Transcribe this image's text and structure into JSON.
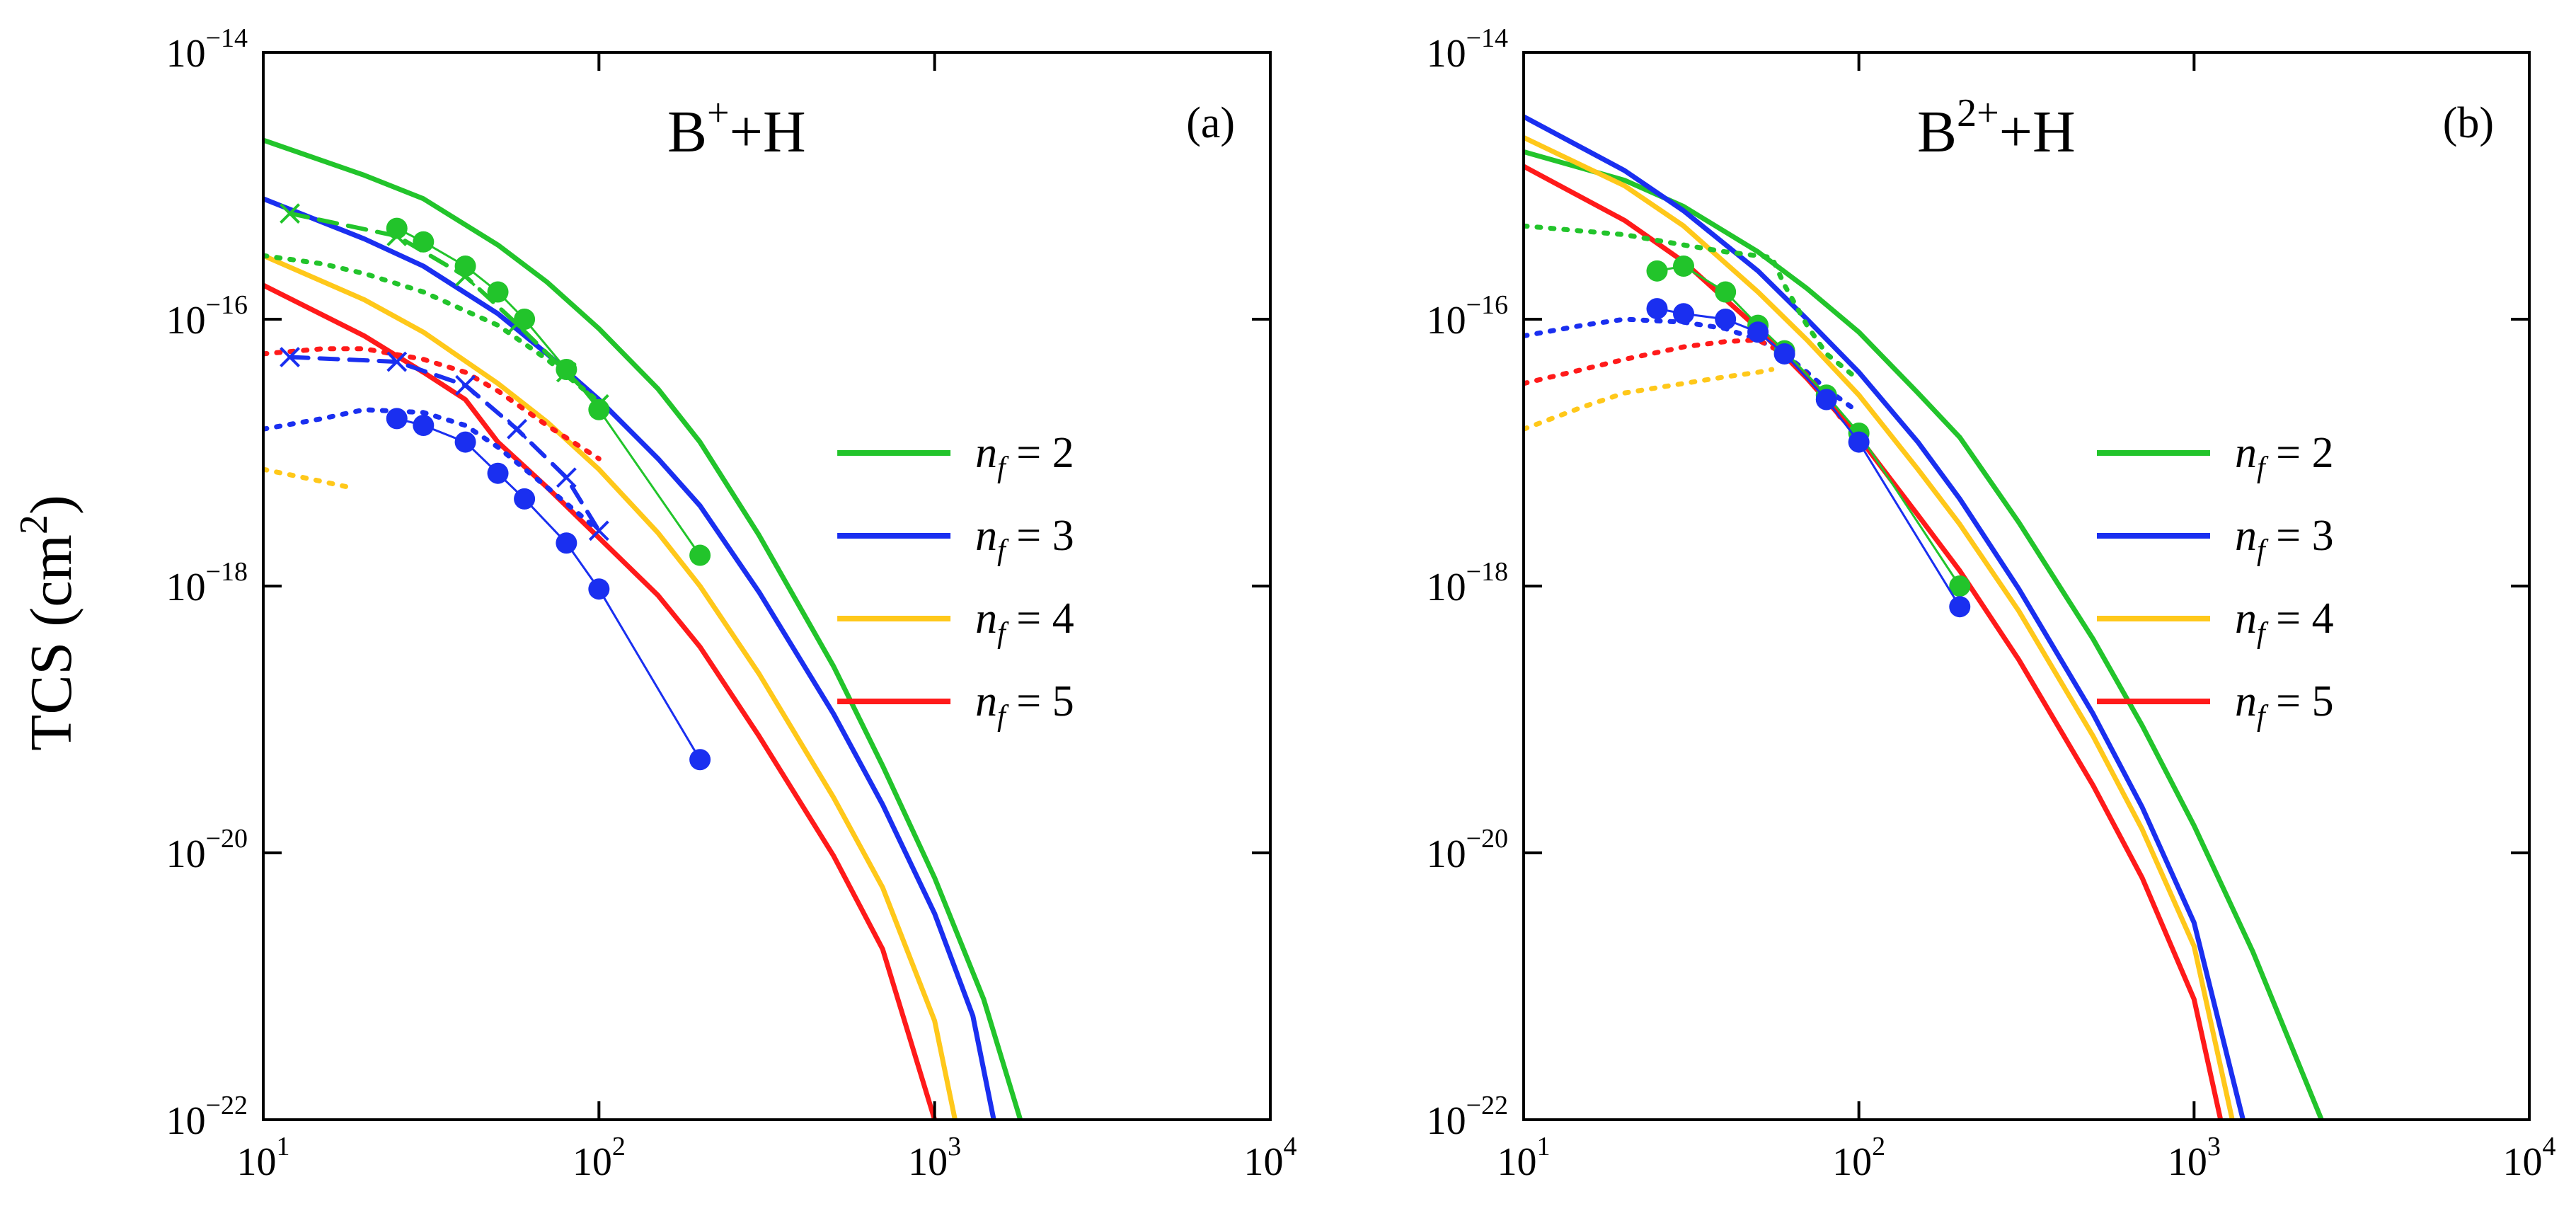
{
  "chart_data": {
    "type": "line",
    "ylabel": "TCS (cm",
    "ylabel_sup": "2",
    "ylabel_close": ")",
    "x_scale": "log",
    "y_scale": "log",
    "xlim": [
      10,
      10000
    ],
    "ylim": [
      1e-22,
      1e-14
    ],
    "x_ticks": [
      {
        "base": "10",
        "exp": "1",
        "value": 10
      },
      {
        "base": "10",
        "exp": "2",
        "value": 100
      },
      {
        "base": "10",
        "exp": "3",
        "value": 1000
      },
      {
        "base": "10",
        "exp": "4",
        "value": 10000
      }
    ],
    "y_ticks": [
      {
        "base": "10",
        "exp": "−14",
        "value": 1e-14
      },
      {
        "base": "10",
        "exp": "−16",
        "value": 1e-16
      },
      {
        "base": "10",
        "exp": "−18",
        "value": 1e-18
      },
      {
        "base": "10",
        "exp": "−20",
        "value": 1e-20
      },
      {
        "base": "10",
        "exp": "−22",
        "value": 1e-22
      }
    ],
    "legend_position": "center-right",
    "legend": [
      {
        "name": "n",
        "sub": "f",
        "value": " = 2",
        "color": "#22c42b"
      },
      {
        "name": "n",
        "sub": "f",
        "value": " = 3",
        "color": "#1a2ff0"
      },
      {
        "name": "n",
        "sub": "f",
        "value": " = 4",
        "color": "#ffc81a"
      },
      {
        "name": "n",
        "sub": "f",
        "value": " = 5",
        "color": "#ff1a1a"
      }
    ],
    "panels": [
      {
        "label": "(a)",
        "title": {
          "a": "B",
          "sup": "+",
          "b": "+H"
        },
        "series": [
          {
            "name": "nf=2 solid",
            "color": "#22c42b",
            "style": "solid",
            "x": [
              10,
              20,
              30,
              50,
              70,
              100,
              150,
              200,
              300,
              500,
              700,
              1000,
              1400,
              1800
            ],
            "y": [
              2.2e-15,
              1.2e-15,
              8e-16,
              3.6e-16,
              1.9e-16,
              8.5e-17,
              3e-17,
              1.2e-17,
              2.4e-18,
              2.5e-19,
              4.5e-20,
              6.5e-21,
              8e-22,
              1e-22
            ]
          },
          {
            "name": "nf=3 solid",
            "color": "#1a2ff0",
            "style": "solid",
            "x": [
              10,
              20,
              30,
              50,
              70,
              100,
              150,
              200,
              300,
              500,
              700,
              1000,
              1300,
              1500
            ],
            "y": [
              8e-16,
              4e-16,
              2.5e-16,
              1.1e-16,
              5.5e-17,
              2.5e-17,
              9e-18,
              4e-18,
              9e-19,
              1.1e-19,
              2.3e-20,
              3.5e-21,
              6e-22,
              1e-22
            ]
          },
          {
            "name": "nf=4 solid",
            "color": "#ffc81a",
            "style": "solid",
            "x": [
              10,
              20,
              30,
              50,
              70,
              100,
              150,
              200,
              300,
              500,
              700,
              1000,
              1150
            ],
            "y": [
              3e-16,
              1.4e-16,
              8e-17,
              3.3e-17,
              1.7e-17,
              7.5e-18,
              2.5e-18,
              1e-18,
              2.2e-19,
              2.6e-20,
              5.5e-21,
              5.5e-22,
              1e-22
            ]
          },
          {
            "name": "nf=5 solid",
            "color": "#ff1a1a",
            "style": "solid",
            "x": [
              10,
              20,
              30,
              40,
              50,
              70,
              100,
              150,
              200,
              300,
              500,
              700,
              1000
            ],
            "y": [
              1.8e-16,
              7.5e-17,
              4e-17,
              2.5e-17,
              1.2e-17,
              5.5e-18,
              2.3e-18,
              8.5e-19,
              3.5e-19,
              7.5e-20,
              9.5e-21,
              1.9e-21,
              1e-22
            ]
          },
          {
            "name": "nf=2 dotted",
            "color": "#22c42b",
            "style": "dotted",
            "x": [
              10,
              15,
              20,
              30,
              50,
              70,
              100
            ],
            "y": [
              3e-16,
              2.6e-16,
              2.2e-16,
              1.6e-16,
              9e-17,
              5e-17,
              2.4e-17
            ]
          },
          {
            "name": "nf=3 dotted",
            "color": "#1a2ff0",
            "style": "dotted",
            "x": [
              10,
              15,
              20,
              30,
              40,
              50,
              70,
              100
            ],
            "y": [
              1.5e-17,
              1.8e-17,
              2.1e-17,
              2e-17,
              1.6e-17,
              1.1e-17,
              5.5e-18,
              2.6e-18
            ]
          },
          {
            "name": "nf=4 dotted",
            "color": "#ffc81a",
            "style": "dotted",
            "x": [
              10,
              14,
              18
            ],
            "y": [
              7.5e-18,
              6.3e-18,
              5.5e-18
            ]
          },
          {
            "name": "nf=5 dotted",
            "color": "#ff1a1a",
            "style": "dotted",
            "x": [
              10,
              15,
              20,
              30,
              40,
              50,
              70,
              100
            ],
            "y": [
              5.5e-17,
              6e-17,
              6e-17,
              5e-17,
              4e-17,
              2.9e-17,
              1.6e-17,
              9e-18
            ]
          },
          {
            "name": "nf=2 dashed",
            "color": "#22c42b",
            "style": "dashed",
            "marker": "x",
            "x": [
              12,
              25,
              40,
              57,
              80,
              100
            ],
            "y": [
              6.2e-16,
              4.2e-16,
              2.1e-16,
              9.2e-17,
              4e-17,
              2.3e-17
            ]
          },
          {
            "name": "nf=3 dashed",
            "color": "#1a2ff0",
            "style": "dashed",
            "marker": "x",
            "x": [
              12,
              25,
              40,
              57,
              80,
              100
            ],
            "y": [
              5.2e-17,
              4.8e-17,
              3.2e-17,
              1.5e-17,
              6.5e-18,
              2.6e-18
            ]
          },
          {
            "name": "nf=2 points",
            "color": "#22c42b",
            "style": "thin",
            "marker": "circle",
            "x": [
              25,
              30,
              40,
              50,
              60,
              80,
              100,
              200
            ],
            "y": [
              4.8e-16,
              3.8e-16,
              2.5e-16,
              1.6e-16,
              1e-16,
              4.2e-17,
              2.1e-17,
              1.7e-18
            ]
          },
          {
            "name": "nf=3 points",
            "color": "#1a2ff0",
            "style": "thin",
            "marker": "circle",
            "x": [
              25,
              30,
              40,
              50,
              60,
              80,
              100,
              200
            ],
            "y": [
              1.8e-17,
              1.6e-17,
              1.2e-17,
              7e-18,
              4.5e-18,
              2.1e-18,
              9.5e-19,
              5e-20
            ]
          }
        ]
      },
      {
        "label": "(b)",
        "title": {
          "a": "B",
          "sup": "2+",
          "b": "+H"
        },
        "series": [
          {
            "name": "nf=2 solid",
            "color": "#22c42b",
            "style": "solid",
            "x": [
              10,
              20,
              30,
              50,
              70,
              100,
              150,
              200,
              300,
              500,
              700,
              1000,
              1500,
              2400
            ],
            "y": [
              1.8e-15,
              1.1e-15,
              7e-16,
              3.2e-16,
              1.7e-16,
              8e-17,
              2.8e-17,
              1.3e-17,
              3e-18,
              4e-19,
              9e-20,
              1.6e-20,
              1.8e-21,
              1e-22
            ]
          },
          {
            "name": "nf=3 solid",
            "color": "#1a2ff0",
            "style": "solid",
            "x": [
              10,
              20,
              30,
              50,
              70,
              100,
              150,
              200,
              300,
              500,
              700,
              1000,
              1400
            ],
            "y": [
              3.3e-15,
              1.3e-15,
              6.5e-16,
              2.3e-16,
              1e-16,
              4e-17,
              1.2e-17,
              4.5e-18,
              9.5e-19,
              1.1e-19,
              2.2e-20,
              3e-21,
              1e-22
            ]
          },
          {
            "name": "nf=4 solid",
            "color": "#ffc81a",
            "style": "solid",
            "x": [
              10,
              20,
              30,
              50,
              70,
              100,
              150,
              200,
              300,
              500,
              700,
              1000,
              1300
            ],
            "y": [
              2.3e-15,
              1e-15,
              5e-16,
              1.6e-16,
              7e-17,
              2.7e-17,
              7.5e-18,
              2.9e-18,
              6.5e-19,
              7.5e-20,
              1.5e-20,
              2e-21,
              1e-22
            ]
          },
          {
            "name": "nf=5 solid",
            "color": "#ff1a1a",
            "style": "solid",
            "x": [
              10,
              20,
              30,
              50,
              70,
              100,
              150,
              200,
              300,
              500,
              700,
              1000,
              1200
            ],
            "y": [
              1.4e-15,
              5.5e-16,
              2.7e-16,
              8.5e-17,
              3.6e-17,
              1.3e-17,
              3.4e-18,
              1.3e-18,
              2.8e-19,
              3.2e-20,
              6.5e-21,
              8e-22,
              1e-22
            ]
          },
          {
            "name": "nf=2 dotted",
            "color": "#22c42b",
            "style": "dotted",
            "x": [
              10,
              20,
              30,
              40,
              55,
              60,
              70,
              80,
              100
            ],
            "y": [
              5e-16,
              4.3e-16,
              3.6e-16,
              3.2e-16,
              2.9e-16,
              1.8e-16,
              9e-17,
              5.5e-17,
              3.5e-17
            ]
          },
          {
            "name": "nf=3 dotted",
            "color": "#1a2ff0",
            "style": "dotted",
            "x": [
              10,
              15,
              20,
              30,
              40,
              50,
              60,
              70,
              80,
              100
            ],
            "y": [
              7.5e-17,
              9e-17,
              1e-16,
              9.5e-17,
              8.5e-17,
              7e-17,
              5.5e-17,
              4e-17,
              3e-17,
              2e-17
            ]
          },
          {
            "name": "nf=4 dotted",
            "color": "#ffc81a",
            "style": "dotted",
            "x": [
              10,
              15,
              20,
              30,
              40,
              50,
              55
            ],
            "y": [
              1.5e-17,
              2.2e-17,
              2.8e-17,
              3.3e-17,
              3.7e-17,
              4e-17,
              4.2e-17
            ]
          },
          {
            "name": "nf=5 dotted",
            "color": "#ff1a1a",
            "style": "dotted",
            "x": [
              10,
              15,
              20,
              30,
              40,
              50,
              60,
              70,
              80,
              90
            ],
            "y": [
              3.3e-17,
              4.2e-17,
              5e-17,
              6.2e-17,
              6.8e-17,
              7e-17,
              5.5e-17,
              3.8e-17,
              2.6e-17,
              1.7e-17
            ]
          },
          {
            "name": "nf=2 points",
            "color": "#22c42b",
            "style": "thin",
            "marker": "circle",
            "x": [
              25,
              30,
              40,
              50,
              60,
              80,
              100,
              200
            ],
            "y": [
              2.3e-16,
              2.5e-16,
              1.6e-16,
              9e-17,
              5.8e-17,
              2.7e-17,
              1.4e-17,
              1e-18
            ]
          },
          {
            "name": "nf=3 points",
            "color": "#1a2ff0",
            "style": "thin",
            "marker": "circle",
            "x": [
              25,
              30,
              40,
              50,
              60,
              80,
              100,
              200
            ],
            "y": [
              1.2e-16,
              1.1e-16,
              1e-16,
              8e-17,
              5.5e-17,
              2.5e-17,
              1.2e-17,
              7e-19
            ]
          }
        ]
      }
    ]
  }
}
